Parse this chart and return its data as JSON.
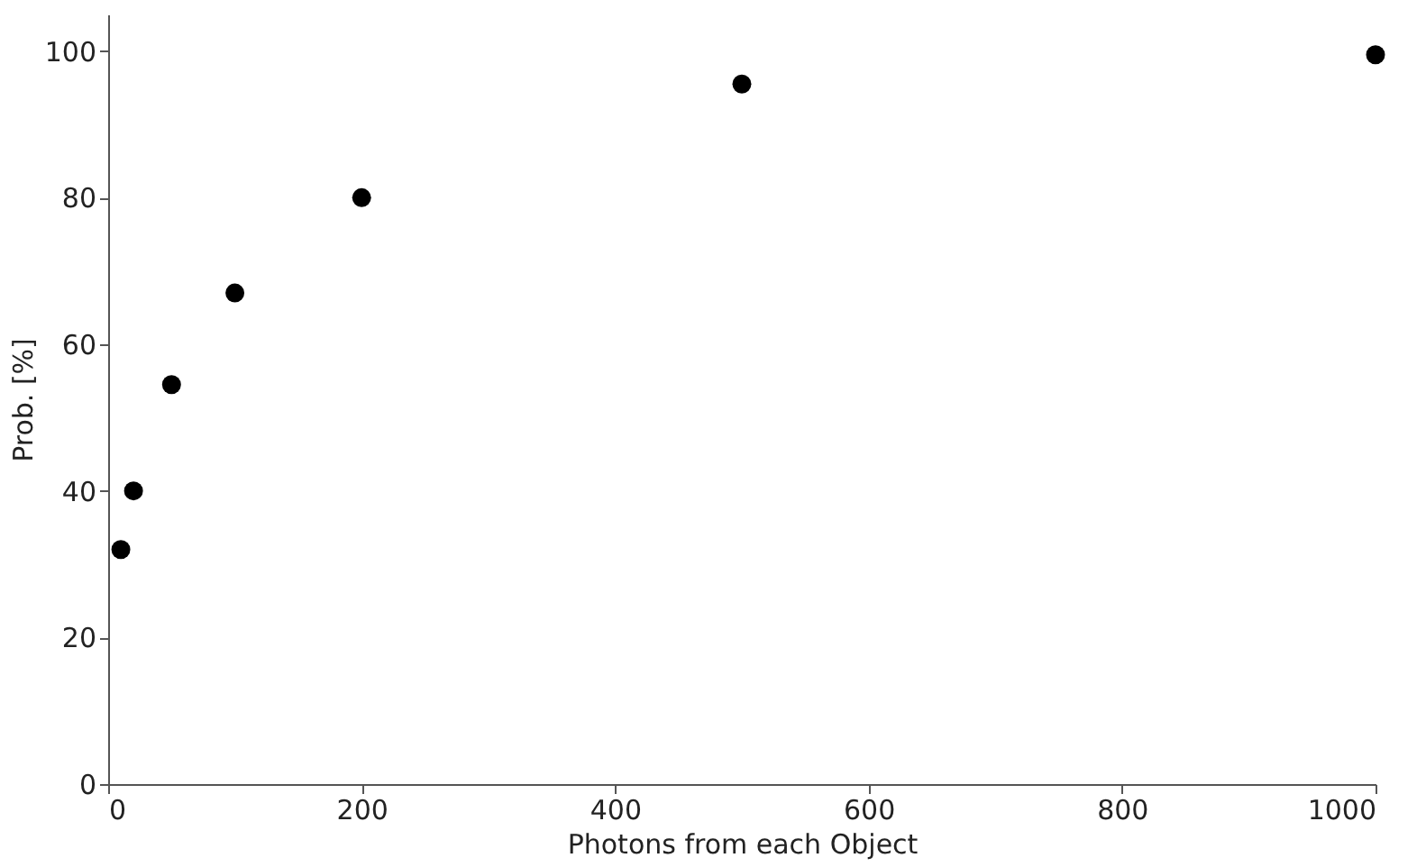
{
  "chart_data": {
    "type": "scatter",
    "xlabel": "Photons from each Object",
    "ylabel": "Prob. [%]",
    "x": [
      10,
      20,
      50,
      100,
      200,
      500,
      1000
    ],
    "series": [
      {
        "color": "#000000",
        "values": [
          32,
          40,
          54.5,
          67,
          80,
          95.5,
          99.5
        ]
      }
    ],
    "xlim": [
      0,
      1000
    ],
    "ylim": [
      0,
      105
    ],
    "xticks": [
      0,
      200,
      400,
      600,
      800,
      1000
    ],
    "yticks": [
      0,
      20,
      40,
      60,
      80,
      100
    ],
    "marker": "circle",
    "grid": false,
    "legend": false
  }
}
